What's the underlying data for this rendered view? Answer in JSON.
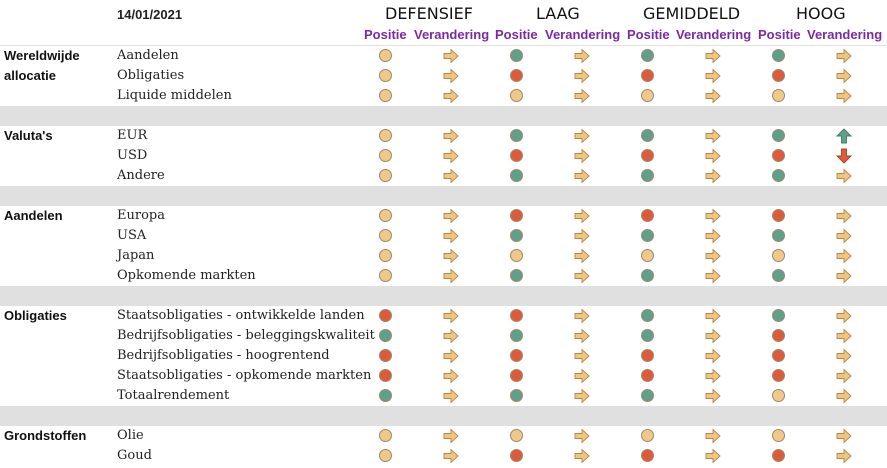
{
  "header": {
    "date": "14/01/2021",
    "profiles": [
      "DEFENSIEF",
      "LAAG",
      "GEMIDDELD",
      "HOOG"
    ],
    "position_label": "Positie",
    "change_label": "Verandering"
  },
  "colors": {
    "neutral": "#f0c988",
    "positive": "#5fa08a",
    "negative": "#de5b3a",
    "arrow_fill": "#f3c480",
    "up": "#5fa08a",
    "down": "#de5b3a",
    "header_sub": "#7a2aa5",
    "separator": "#e0e0e0"
  },
  "sections": [
    {
      "category": [
        "Wereldwijde",
        "allocatie"
      ],
      "rows": [
        {
          "label": "Aandelen",
          "pos": [
            "neutral",
            "positive",
            "positive",
            "positive"
          ],
          "chg": [
            "flat",
            "flat",
            "flat",
            "flat"
          ]
        },
        {
          "label": "Obligaties",
          "pos": [
            "neutral",
            "negative",
            "negative",
            "negative"
          ],
          "chg": [
            "flat",
            "flat",
            "flat",
            "flat"
          ]
        },
        {
          "label": "Liquide middelen",
          "pos": [
            "neutral",
            "neutral",
            "neutral",
            "neutral"
          ],
          "chg": [
            "flat",
            "flat",
            "flat",
            "flat"
          ]
        }
      ]
    },
    {
      "category": [
        "Valuta's"
      ],
      "rows": [
        {
          "label": "EUR",
          "pos": [
            "neutral",
            "positive",
            "positive",
            "positive"
          ],
          "chg": [
            "flat",
            "flat",
            "flat",
            "up"
          ]
        },
        {
          "label": "USD",
          "pos": [
            "neutral",
            "negative",
            "negative",
            "negative"
          ],
          "chg": [
            "flat",
            "flat",
            "flat",
            "down"
          ]
        },
        {
          "label": "Andere",
          "pos": [
            "neutral",
            "positive",
            "positive",
            "positive"
          ],
          "chg": [
            "flat",
            "flat",
            "flat",
            "flat"
          ]
        }
      ]
    },
    {
      "category": [
        "Aandelen"
      ],
      "rows": [
        {
          "label": "Europa",
          "pos": [
            "neutral",
            "negative",
            "negative",
            "negative"
          ],
          "chg": [
            "flat",
            "flat",
            "flat",
            "flat"
          ]
        },
        {
          "label": "USA",
          "pos": [
            "neutral",
            "positive",
            "positive",
            "positive"
          ],
          "chg": [
            "flat",
            "flat",
            "flat",
            "flat"
          ]
        },
        {
          "label": "Japan",
          "pos": [
            "neutral",
            "neutral",
            "neutral",
            "neutral"
          ],
          "chg": [
            "flat",
            "flat",
            "flat",
            "flat"
          ]
        },
        {
          "label": "Opkomende markten",
          "pos": [
            "neutral",
            "positive",
            "positive",
            "positive"
          ],
          "chg": [
            "flat",
            "flat",
            "flat",
            "flat"
          ]
        }
      ]
    },
    {
      "category": [
        "Obligaties"
      ],
      "rows": [
        {
          "label": "Staatsobligaties - ontwikkelde landen",
          "pos": [
            "negative",
            "negative",
            "positive",
            "positive"
          ],
          "chg": [
            "flat",
            "flat",
            "flat",
            "flat"
          ]
        },
        {
          "label": "Bedrijfsobligaties - beleggingskwaliteit",
          "pos": [
            "positive",
            "positive",
            "positive",
            "negative"
          ],
          "chg": [
            "flat",
            "flat",
            "flat",
            "flat"
          ]
        },
        {
          "label": "Bedrijfsobligaties - hoogrentend",
          "pos": [
            "negative",
            "negative",
            "negative",
            "negative"
          ],
          "chg": [
            "flat",
            "flat",
            "flat",
            "flat"
          ]
        },
        {
          "label": "Staatsobligaties - opkomende markten",
          "pos": [
            "negative",
            "negative",
            "negative",
            "negative"
          ],
          "chg": [
            "flat",
            "flat",
            "flat",
            "flat"
          ]
        },
        {
          "label": "Totaalrendement",
          "pos": [
            "positive",
            "positive",
            "positive",
            "neutral"
          ],
          "chg": [
            "flat",
            "flat",
            "flat",
            "flat"
          ]
        }
      ]
    },
    {
      "category": [
        "Grondstoffen"
      ],
      "rows": [
        {
          "label": "Olie",
          "pos": [
            "neutral",
            "neutral",
            "neutral",
            "neutral"
          ],
          "chg": [
            "flat",
            "flat",
            "flat",
            "flat"
          ]
        },
        {
          "label": "Goud",
          "pos": [
            "neutral",
            "negative",
            "negative",
            "negative"
          ],
          "chg": [
            "flat",
            "flat",
            "flat",
            "flat"
          ]
        }
      ]
    }
  ]
}
